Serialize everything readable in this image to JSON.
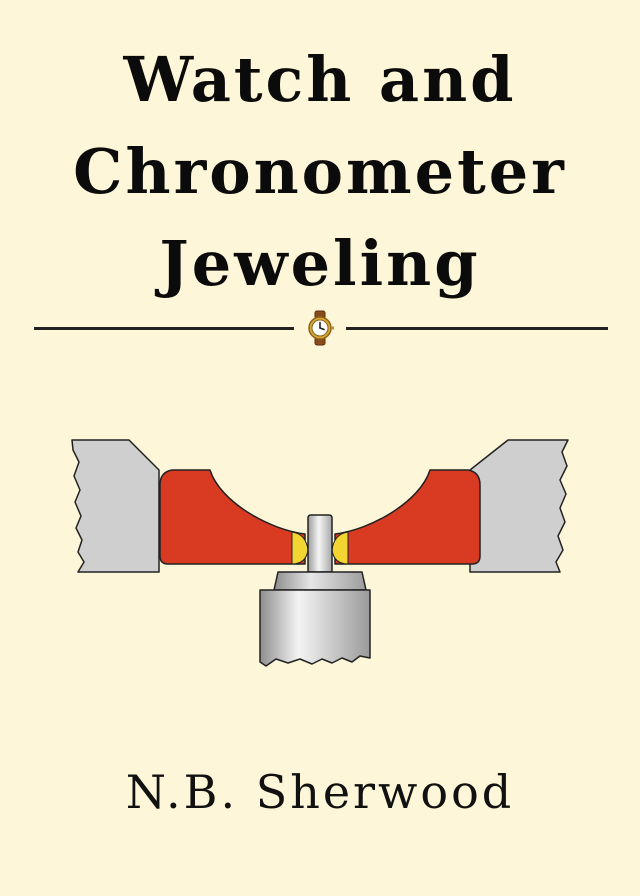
{
  "book": {
    "title_lines": [
      "Watch and",
      "Chronometer",
      "Jeweling"
    ],
    "author": "N.B. Sherwood"
  },
  "ornament": {
    "icon": "wristwatch-icon"
  },
  "illustration": {
    "subject": "jewel-bearing-cross-section",
    "colors": {
      "plate": "#cfcfcf",
      "jewel": "#d93b22",
      "oil": "#f2d533",
      "steel": "#b9b9b9",
      "outline": "#222222",
      "background": "#fdf6d8"
    }
  }
}
